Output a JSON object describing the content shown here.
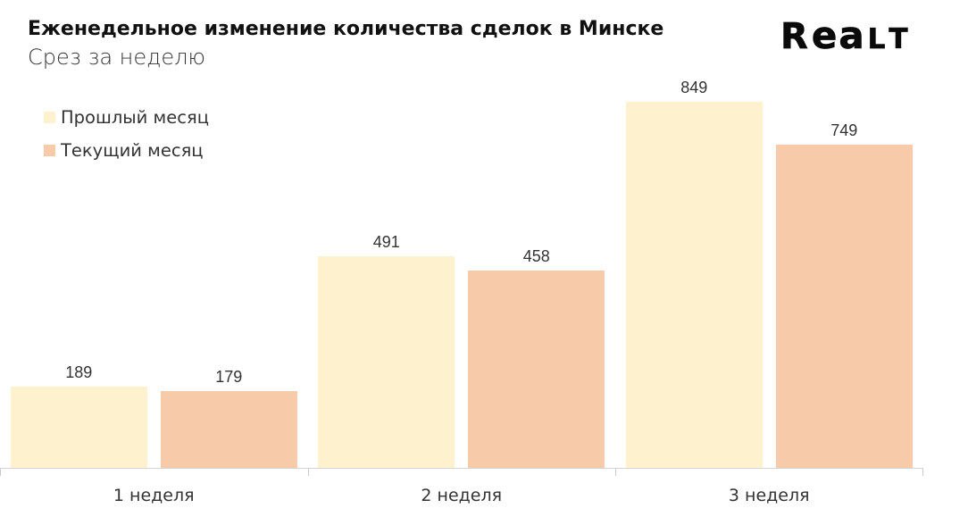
{
  "header": {
    "title": "Еженедельное изменение количества сделок в Минске",
    "subtitle": "Срез за неделю"
  },
  "logo": {
    "text": "Realt"
  },
  "legend": {
    "position": "top-left",
    "items": [
      {
        "label": "Прошлый месяц",
        "color": "#FDF2CD"
      },
      {
        "label": "Текущий месяц",
        "color": "#F7CBAA"
      }
    ]
  },
  "chart_data": {
    "type": "bar",
    "title": "Еженедельное изменение количества сделок в Минске",
    "subtitle": "Срез за неделю",
    "categories": [
      "1 неделя",
      "2 неделя",
      "3 неделя"
    ],
    "series": [
      {
        "name": "Прошлый месяц",
        "color": "#FDF2CD",
        "values": [
          189,
          491,
          849
        ]
      },
      {
        "name": "Текущий месяц",
        "color": "#F7CBAA",
        "values": [
          179,
          458,
          749
        ]
      }
    ],
    "value_labels": [
      [
        "189",
        "491",
        "849"
      ],
      [
        "179",
        "458",
        "749"
      ]
    ],
    "xlabel": "",
    "ylabel": "",
    "ylim": [
      0,
      900
    ],
    "grid": false,
    "legend_position": "top-left",
    "axis_color": "#d3d3d3",
    "background_color": "#ffffff"
  }
}
